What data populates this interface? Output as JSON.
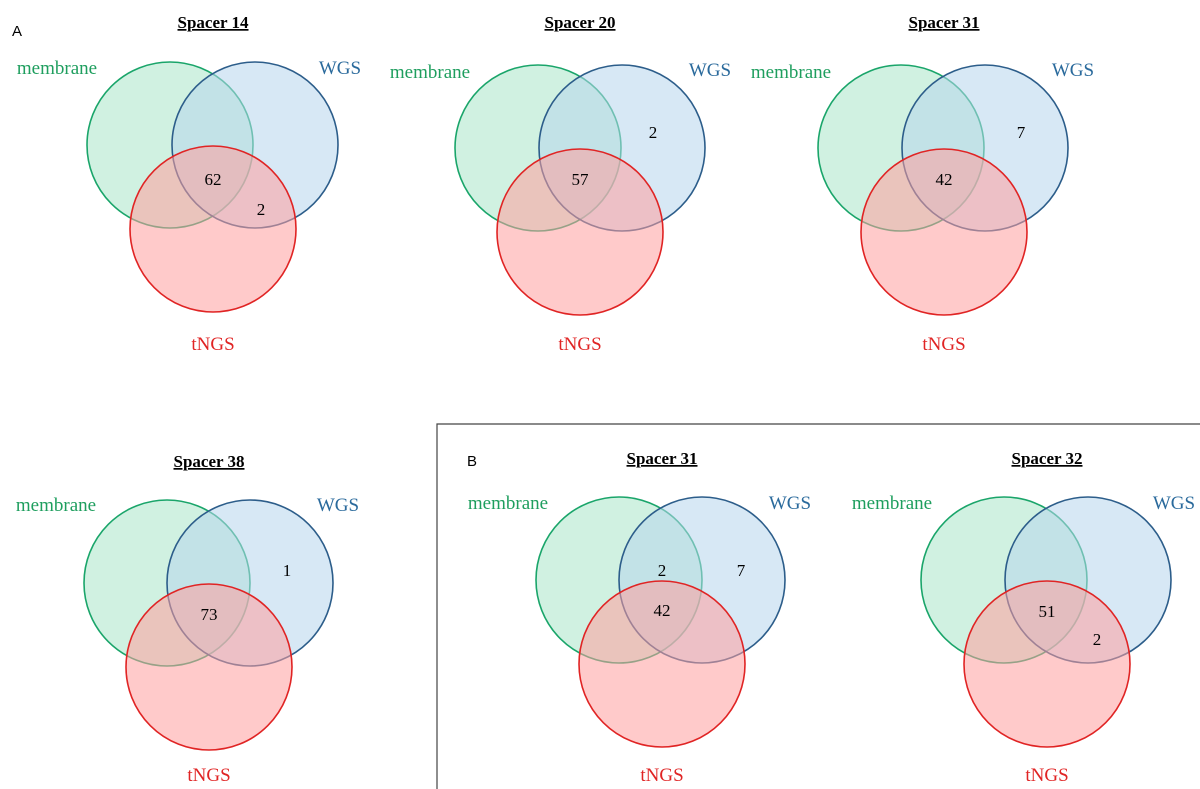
{
  "colors": {
    "membrane": "#1aa56a",
    "membrane_fill": "#a9e6c8",
    "wgs": "#2c5d8a",
    "wgs_fill": "#b6d6ec",
    "tngs": "#e02424",
    "tngs_fill": "#ff9e9e",
    "membrane_label": "#1e9e5e",
    "wgs_label": "#2a6a9c",
    "tngs_label": "#e02424"
  },
  "panels": {
    "a": {
      "letter": "A"
    },
    "b": {
      "letter": "B"
    }
  },
  "diagrams": [
    {
      "title": "Spacer 14",
      "labels": {
        "membrane": "membrane",
        "wgs": "WGS",
        "tngs": "tNGS"
      },
      "regions": {
        "all_three": "62",
        "wgs_tngs": "2"
      }
    },
    {
      "title": "Spacer 20",
      "labels": {
        "membrane": "membrane",
        "wgs": "WGS",
        "tngs": "tNGS"
      },
      "regions": {
        "all_three": "57",
        "wgs_only": "2"
      }
    },
    {
      "title": "Spacer 31",
      "labels": {
        "membrane": "membrane",
        "wgs": "WGS",
        "tngs": "tNGS"
      },
      "regions": {
        "all_three": "42",
        "wgs_only": "7"
      }
    },
    {
      "title": "Spacer 38",
      "labels": {
        "membrane": "membrane",
        "wgs": "WGS",
        "tngs": "tNGS"
      },
      "regions": {
        "all_three": "73",
        "wgs_only": "1"
      }
    },
    {
      "title": "Spacer 31",
      "labels": {
        "membrane": "membrane",
        "wgs": "WGS",
        "tngs": "tNGS"
      },
      "regions": {
        "membrane_wgs": "2",
        "all_three": "42",
        "wgs_only": "7"
      }
    },
    {
      "title": "Spacer 32",
      "labels": {
        "membrane": "membrane",
        "wgs": "WGS",
        "tngs": "tNGS"
      },
      "regions": {
        "all_three": "51",
        "wgs_tngs": "2"
      }
    }
  ]
}
